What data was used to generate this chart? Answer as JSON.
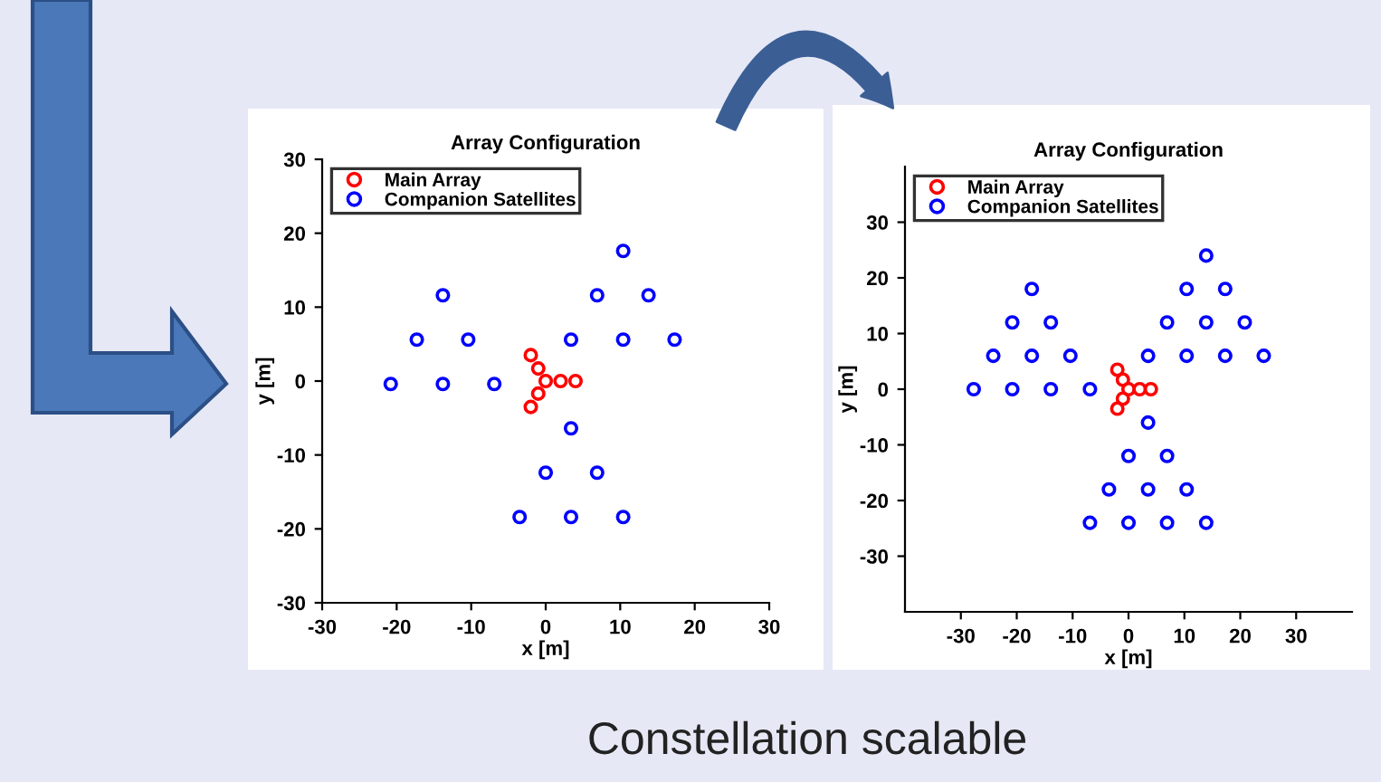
{
  "chart_data": [
    {
      "type": "scatter",
      "title": "Array Configuration",
      "xlabel": "x [m]",
      "ylabel": "y [m]",
      "xlim": [
        -30,
        30
      ],
      "ylim": [
        -30,
        30
      ],
      "xticks": [
        -30,
        -20,
        -10,
        0,
        10,
        20,
        30
      ],
      "yticks": [
        -30,
        -20,
        -10,
        0,
        10,
        20,
        30
      ],
      "grid": false,
      "legend": "top left",
      "marker": "circle",
      "annotations": [
        "Constellation scalable"
      ],
      "series": [
        {
          "name": "Main Array",
          "color": "#ff0000",
          "x": [
            0,
            2,
            4,
            -1,
            -2,
            -1,
            -2
          ],
          "values": [
            0,
            0,
            0,
            1.7,
            3.5,
            -1.7,
            -3.5
          ]
        },
        {
          "name": "Companion Satellites",
          "color": "#0000ff",
          "x": [
            -20.8,
            -13.8,
            -6.9,
            -17.3,
            -10.4,
            -13.8,
            3.4,
            10.4,
            17.3,
            6.9,
            13.8,
            10.4,
            3.4,
            0,
            6.9,
            -3.5,
            3.4,
            10.4
          ],
          "values": [
            -0.4,
            -0.4,
            -0.4,
            5.6,
            5.6,
            11.6,
            5.6,
            5.6,
            5.6,
            11.6,
            11.6,
            17.6,
            -6.4,
            -12.4,
            -12.4,
            -18.4,
            -18.4,
            -18.4
          ]
        }
      ]
    },
    {
      "type": "scatter",
      "title": "Array Configuration",
      "xlabel": "x [m]",
      "ylabel": "y [m]",
      "xlim": [
        -40,
        40
      ],
      "ylim": [
        -40,
        40
      ],
      "xticks": [
        -30,
        -20,
        -10,
        0,
        10,
        20,
        30
      ],
      "yticks": [
        -30,
        -20,
        -10,
        0,
        10,
        20,
        30
      ],
      "grid": false,
      "legend": "top left",
      "marker": "circle",
      "series": [
        {
          "name": "Main Array",
          "color": "#ff0000",
          "x": [
            0,
            2,
            4,
            -1,
            -2,
            -1,
            -2
          ],
          "values": [
            0,
            0,
            0,
            1.7,
            3.5,
            -1.7,
            -3.5
          ]
        },
        {
          "name": "Companion Satellites",
          "color": "#0000ff",
          "x": [
            -27.7,
            -20.8,
            -13.9,
            -6.9,
            -24.2,
            -17.3,
            -10.4,
            -20.8,
            -13.9,
            -17.3,
            3.5,
            10.4,
            17.3,
            24.2,
            6.9,
            13.9,
            20.8,
            10.4,
            17.3,
            13.9,
            3.5,
            0,
            6.9,
            -3.5,
            3.5,
            10.4,
            -6.9,
            0,
            6.9,
            13.9
          ],
          "values": [
            0,
            0,
            0,
            0,
            6,
            6,
            6,
            12,
            12,
            18,
            6,
            6,
            6,
            6,
            12,
            12,
            12,
            18,
            18,
            24,
            -6,
            -12,
            -12,
            -18,
            -18,
            -18,
            -24,
            -24,
            -24,
            -24
          ]
        }
      ]
    }
  ]
}
